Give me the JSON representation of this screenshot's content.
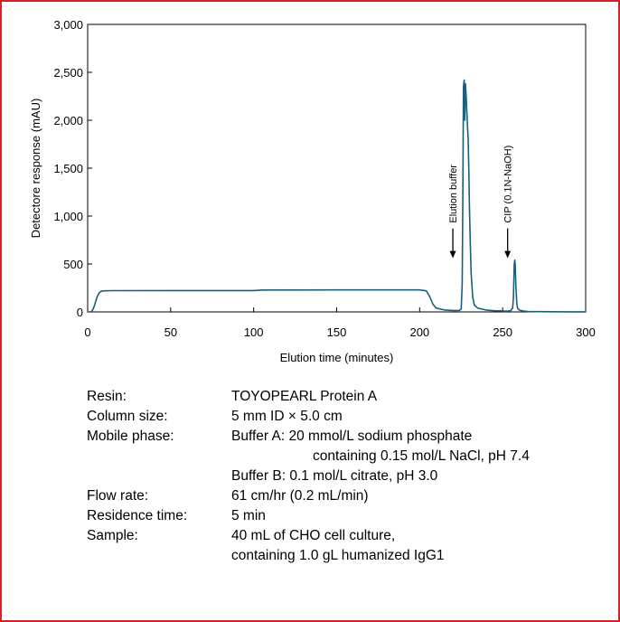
{
  "chart_data": {
    "type": "line",
    "title": "",
    "xlabel": "Elution time (minutes)",
    "ylabel": "Detectore response (mAU)",
    "xlim": [
      0,
      300
    ],
    "ylim": [
      0,
      3000
    ],
    "x_ticks": [
      "0",
      "50",
      "100",
      "150",
      "200",
      "250",
      "300"
    ],
    "y_ticks": [
      "0",
      "500",
      "1,000",
      "1,500",
      "2,000",
      "2,500",
      "3,000"
    ],
    "grid": false,
    "legend": "none",
    "line_color": "#1b5e7a",
    "series": [
      {
        "x": [
          0,
          2,
          3,
          4,
          5,
          6,
          7,
          8,
          10,
          15,
          50,
          100,
          105,
          150,
          200,
          204,
          206,
          208,
          210,
          215,
          220,
          224,
          225,
          225.6,
          226,
          226.4,
          226.8,
          227.2,
          227.6,
          228,
          228.4,
          228.8,
          229.2,
          229.6,
          230,
          230.5,
          231,
          232,
          233,
          235,
          240,
          245,
          250,
          252,
          254,
          255,
          256,
          256.5,
          257,
          257.3,
          257.6,
          258,
          258.5,
          259,
          260,
          262,
          265,
          270,
          280,
          290,
          300
        ],
        "y": [
          0,
          0,
          20,
          60,
          120,
          170,
          200,
          215,
          220,
          222,
          223,
          223,
          228,
          229,
          229,
          220,
          160,
          80,
          40,
          20,
          15,
          15,
          30,
          300,
          1200,
          2350,
          2420,
          2000,
          2380,
          2250,
          2100,
          1950,
          1800,
          1500,
          1100,
          700,
          400,
          150,
          70,
          40,
          20,
          12,
          10,
          8,
          10,
          15,
          40,
          150,
          500,
          540,
          480,
          250,
          90,
          40,
          20,
          10,
          5,
          3,
          2,
          1,
          1
        ]
      }
    ],
    "annotations": [
      {
        "text": "Elution buffer",
        "x": 220,
        "y_tip": 560
      },
      {
        "text": "CIP (0.1N-NaOH)",
        "x": 253,
        "y_tip": 560
      }
    ]
  },
  "conditions": {
    "resin_label": "Resin:",
    "resin_value": "TOYOPEARL Protein A",
    "column_label": "Column size:",
    "column_value": "5 mm ID × 5.0 cm",
    "mobile_label": "Mobile phase:",
    "mobile_value_a1": "Buffer A: 20 mmol/L sodium phosphate",
    "mobile_value_a2": "containing 0.15 mol/L NaCl, pH 7.4",
    "mobile_value_b": "Buffer B: 0.1 mol/L citrate, pH 3.0",
    "flow_label": "Flow rate:",
    "flow_value": "61 cm/hr (0.2 mL/min)",
    "residence_label": "Residence time:",
    "residence_value": "5 min",
    "sample_label": "Sample:",
    "sample_value1": "40 mL of CHO cell culture,",
    "sample_value2": "containing 1.0 gL humanized IgG1"
  }
}
